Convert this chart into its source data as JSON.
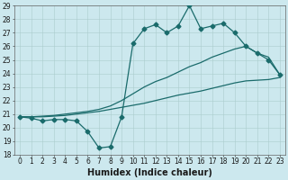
{
  "xlabel": "Humidex (Indice chaleur)",
  "ylabel": "",
  "xlim": [
    -0.5,
    23.5
  ],
  "ylim": [
    18,
    29
  ],
  "xticks": [
    0,
    1,
    2,
    3,
    4,
    5,
    6,
    7,
    8,
    9,
    10,
    11,
    12,
    13,
    14,
    15,
    16,
    17,
    18,
    19,
    20,
    21,
    22,
    23
  ],
  "yticks": [
    18,
    19,
    20,
    21,
    22,
    23,
    24,
    25,
    26,
    27,
    28,
    29
  ],
  "background_color": "#cce8ee",
  "grid_color": "#aacccc",
  "line_color": "#1a6b6b",
  "line1_x": [
    0,
    1,
    2,
    3,
    4,
    5,
    6,
    7,
    8,
    9,
    10,
    11,
    12,
    13,
    14,
    15,
    16,
    17,
    18,
    19,
    20,
    21,
    22,
    23
  ],
  "line1_y": [
    20.8,
    20.7,
    20.5,
    20.6,
    20.6,
    20.5,
    19.7,
    18.5,
    18.6,
    20.8,
    26.2,
    27.3,
    27.6,
    27.0,
    27.5,
    29.0,
    27.3,
    27.5,
    27.7,
    27.0,
    26.0,
    25.5,
    25.0,
    23.9
  ],
  "line2_x": [
    0,
    1,
    2,
    3,
    4,
    5,
    6,
    7,
    8,
    9,
    10,
    11,
    12,
    13,
    14,
    15,
    16,
    17,
    18,
    19,
    20,
    21,
    22,
    23
  ],
  "line2_y": [
    20.8,
    20.8,
    20.85,
    20.9,
    21.0,
    21.1,
    21.2,
    21.35,
    21.6,
    22.0,
    22.5,
    23.0,
    23.4,
    23.7,
    24.1,
    24.5,
    24.8,
    25.2,
    25.5,
    25.8,
    26.0,
    25.5,
    25.2,
    23.9
  ],
  "line3_x": [
    0,
    1,
    2,
    3,
    4,
    5,
    6,
    7,
    8,
    9,
    10,
    11,
    12,
    13,
    14,
    15,
    16,
    17,
    18,
    19,
    20,
    21,
    22,
    23
  ],
  "line3_y": [
    20.8,
    20.8,
    20.8,
    20.85,
    20.9,
    21.0,
    21.1,
    21.2,
    21.35,
    21.5,
    21.65,
    21.8,
    22.0,
    22.2,
    22.4,
    22.55,
    22.7,
    22.9,
    23.1,
    23.3,
    23.45,
    23.5,
    23.55,
    23.7
  ],
  "markersize": 2.5,
  "linewidth": 0.9,
  "tick_fontsize": 5.5,
  "xlabel_fontsize": 7
}
